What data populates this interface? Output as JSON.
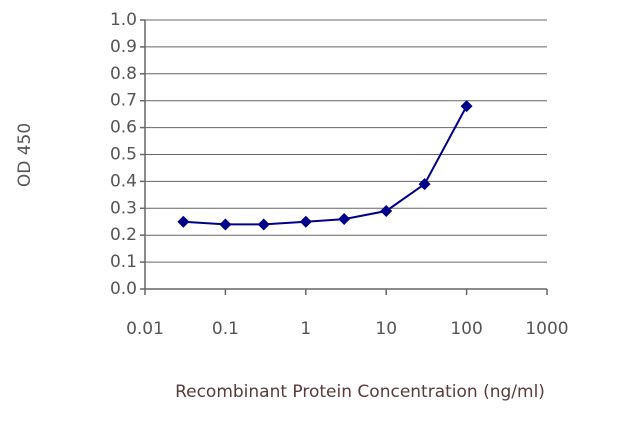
{
  "chart_data": {
    "type": "line",
    "xlabel": "Recombinant Protein Concentration (ng/ml)",
    "ylabel": "OD 450",
    "x": [
      0.03,
      0.1,
      0.3,
      1,
      3,
      10,
      30,
      100
    ],
    "values": [
      0.25,
      0.24,
      0.24,
      0.25,
      0.26,
      0.29,
      0.39,
      0.68
    ],
    "color": "#00008b",
    "xscale": "log",
    "xlim": [
      0.01,
      1000
    ],
    "xticks": [
      0.01,
      0.1,
      1,
      10,
      100,
      1000
    ],
    "ylim": [
      0,
      1
    ],
    "yticks": [
      {
        "value": 0,
        "label": "0.0"
      },
      0.1,
      0.2,
      0.3,
      0.4,
      0.5,
      0.6,
      0.7,
      0.8,
      0.9,
      {
        "value": 1,
        "label": "1.0"
      }
    ],
    "grid": true
  }
}
